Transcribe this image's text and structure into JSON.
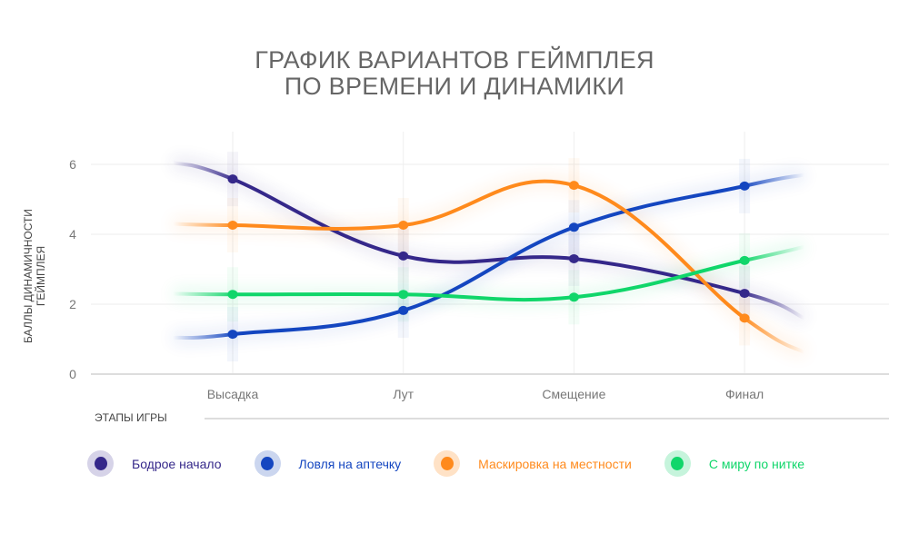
{
  "chart_data": {
    "type": "line",
    "title_line1": "ГРАФИК ВАРИАНТОВ ГЕЙМПЛЕЯ",
    "title_line2": "ПО ВРЕМЕНИ И ДИНАМИКИ",
    "xlabel": "ЭТАПЫ ИГРЫ",
    "ylabel_line1": "БАЛЛЫ ДИНАМИЧНОСТИ",
    "ylabel_line2": "ГЕЙМПЛЕЯ",
    "categories": [
      "Высадка",
      "Лут",
      "Смещение",
      "Финал"
    ],
    "yticks": [
      "0",
      "2",
      "4",
      "6"
    ],
    "ylim": [
      0,
      7
    ],
    "grid": true,
    "legend_position": "bottom",
    "series": [
      {
        "name": "Бодрое начало",
        "color": "#35288a",
        "values": [
          5.58,
          3.38,
          3.3,
          2.31
        ],
        "tails": [
          6.05,
          1.6
        ]
      },
      {
        "name": "Ловля на аптечку",
        "color": "#1446c0",
        "values": [
          1.14,
          1.82,
          4.2,
          5.38
        ],
        "tails": [
          1.04,
          5.7
        ]
      },
      {
        "name": "Маскировка на местности",
        "color": "#ff8a1c",
        "values": [
          4.26,
          4.26,
          5.4,
          1.6
        ],
        "tails": [
          4.3,
          0.62
        ]
      },
      {
        "name": "С миру по нитке",
        "color": "#10d66a",
        "values": [
          2.28,
          2.28,
          2.2,
          3.25
        ],
        "tails": [
          2.3,
          3.64
        ]
      }
    ]
  }
}
